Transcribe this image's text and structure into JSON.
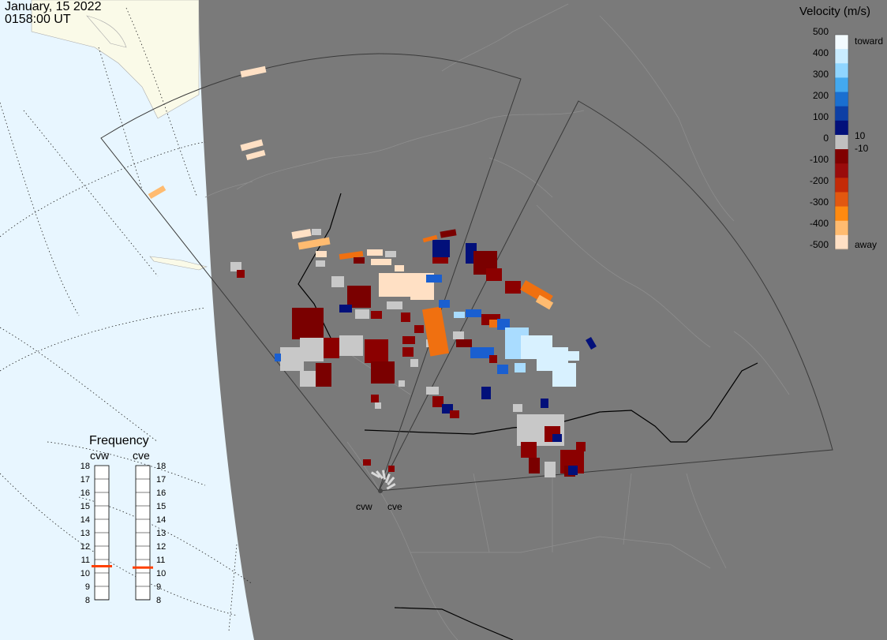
{
  "header": {
    "date": "January, 15 2022",
    "time": "0158:00 UT"
  },
  "colorbar": {
    "title": "Velocity (m/s)",
    "tick_labels": [
      "500",
      "400",
      "300",
      "200",
      "100",
      "0",
      "-100",
      "-200",
      "-300",
      "-400",
      "-500"
    ],
    "inner_labels": [
      "10",
      "-10"
    ],
    "end_labels": {
      "top": "toward",
      "bottom": "away"
    },
    "colors": [
      "#f3fbff",
      "#c9ecff",
      "#8fd5ff",
      "#43a9ef",
      "#1a6fd0",
      "#0d3fa5",
      "#02107a",
      "#c0c0c0",
      "#800000",
      "#9a0b0b",
      "#c42a07",
      "#e25810",
      "#ff8a10",
      "#ffbb70",
      "#ffe0c4"
    ]
  },
  "frequency": {
    "title": "Frequency",
    "radars": [
      "cvw",
      "cve"
    ],
    "scale": [
      "18",
      "17",
      "16",
      "15",
      "14",
      "13",
      "12",
      "11",
      "10",
      "9",
      "8"
    ],
    "current_mhz": {
      "cvw": 10.5,
      "cve": 10.4
    }
  },
  "sites": [
    "cvw",
    "cve"
  ],
  "colors": {
    "ocean": "#e8f6ff",
    "land_day": "#fafae8",
    "night": "#7a7a7a",
    "fov": "#3a3a3a",
    "marker": "#ff4000"
  }
}
